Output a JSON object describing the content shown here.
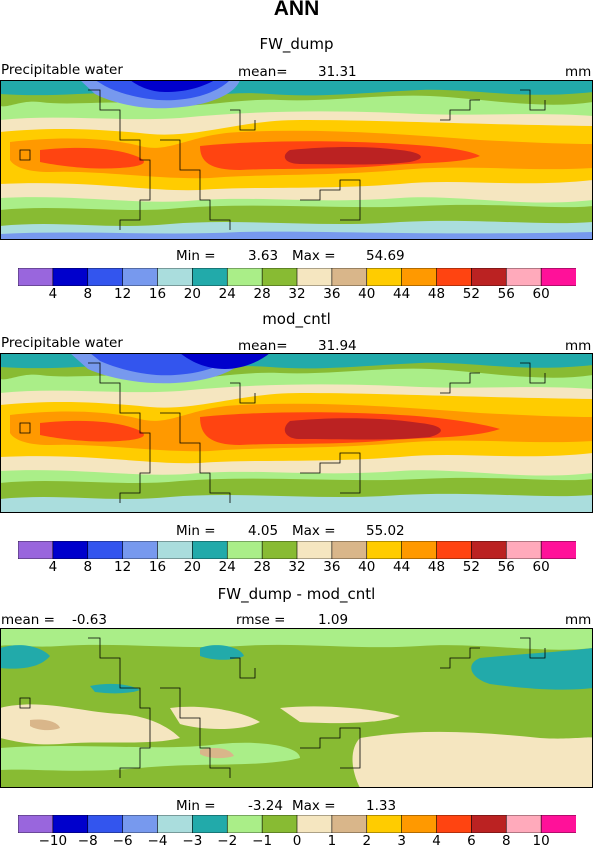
{
  "title": "ANN",
  "colorbar_colors": [
    "#9966dd",
    "#0000cc",
    "#3355ee",
    "#7799ee",
    "#aadddd",
    "#22aaaa",
    "#aaee88",
    "#88bb33",
    "#f5e6c0",
    "#d9b68a",
    "#ffcc00",
    "#ff9900",
    "#ff4411",
    "#bb2222",
    "#ffaabb",
    "#ff1199"
  ],
  "chart_data": [
    {
      "type": "heatmap",
      "title": "FW_dump",
      "left_label": "Precipitable water",
      "stat_label": "mean=",
      "stat_value": "31.31",
      "units": "mm",
      "min_label": "Min =",
      "min_value": "3.63",
      "max_label": "Max =",
      "max_value": "54.69",
      "min": 3.63,
      "max": 54.69,
      "mean": 31.31,
      "colorbar_ticks": [
        "4",
        "8",
        "12",
        "16",
        "20",
        "24",
        "28",
        "32",
        "36",
        "40",
        "44",
        "48",
        "52",
        "56",
        "60"
      ]
    },
    {
      "type": "heatmap",
      "title": "mod_cntl",
      "left_label": "Precipitable water",
      "stat_label": "mean=",
      "stat_value": "31.94",
      "units": "mm",
      "min_label": "Min =",
      "min_value": "4.05",
      "max_label": "Max =",
      "max_value": "55.02",
      "min": 4.05,
      "max": 55.02,
      "mean": 31.94,
      "colorbar_ticks": [
        "4",
        "8",
        "12",
        "16",
        "20",
        "24",
        "28",
        "32",
        "36",
        "40",
        "44",
        "48",
        "52",
        "56",
        "60"
      ]
    },
    {
      "type": "heatmap",
      "title": "FW_dump - mod_cntl",
      "left_label": "mean =",
      "left_value": "-0.63",
      "stat_label": "rmse =",
      "stat_value": "1.09",
      "units": "mm",
      "min_label": "Min =",
      "min_value": "-3.24",
      "max_label": "Max =",
      "max_value": "1.33",
      "min": -3.24,
      "max": 1.33,
      "mean": -0.63,
      "rmse": 1.09,
      "colorbar_ticks": [
        "-10",
        "-8",
        "-6",
        "-4",
        "-3",
        "-2",
        "-1",
        "0",
        "1",
        "2",
        "3",
        "4",
        "6",
        "8",
        "10"
      ]
    }
  ]
}
